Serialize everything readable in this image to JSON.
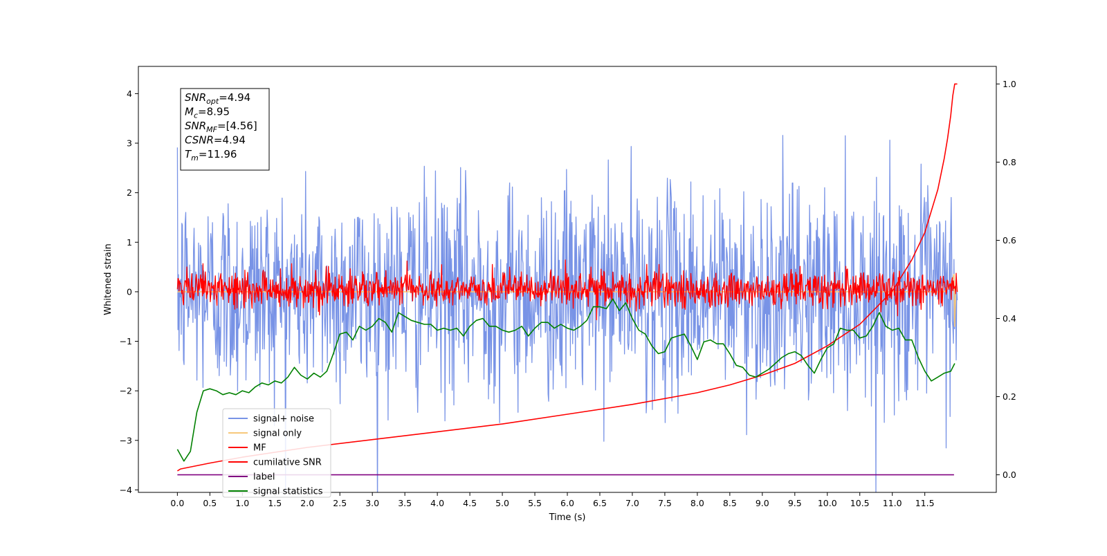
{
  "chart_data": {
    "type": "line",
    "xlabel": "Time (s)",
    "ylabel": "Whitened strain",
    "xlim": [
      -0.6,
      12.6
    ],
    "ylim": [
      -4.05,
      4.55
    ],
    "y2lim": [
      -0.045,
      1.045
    ],
    "x_ticks": [
      0.0,
      0.5,
      1.0,
      1.5,
      2.0,
      2.5,
      3.0,
      3.5,
      4.0,
      4.5,
      5.0,
      5.5,
      6.0,
      6.5,
      7.0,
      7.5,
      8.0,
      8.5,
      9.0,
      9.5,
      10.0,
      10.5,
      11.0,
      11.5
    ],
    "x_tick_labels": [
      "0.0",
      "0.5",
      "1.0",
      "1.5",
      "2.0",
      "2.5",
      "3.0",
      "3.5",
      "4.0",
      "4.5",
      "5.0",
      "5.5",
      "6.0",
      "6.5",
      "7.0",
      "7.5",
      "8.0",
      "8.5",
      "9.0",
      "9.5",
      "10.0",
      "10.5",
      "11.0",
      "11.5"
    ],
    "y_ticks": [
      -4,
      -3,
      -2,
      -1,
      0,
      1,
      2,
      3,
      4
    ],
    "y_tick_labels": [
      "−4",
      "−3",
      "−2",
      "−1",
      "0",
      "1",
      "2",
      "3",
      "4"
    ],
    "y2_ticks": [
      0.0,
      0.2,
      0.4,
      0.6,
      0.8,
      1.0
    ],
    "y2_tick_labels": [
      "0.0",
      "0.2",
      "0.4",
      "0.6",
      "0.8",
      "1.0"
    ],
    "legend_position": "lower-left",
    "info_box": {
      "lines": [
        {
          "sym": "SNR",
          "sub": "opt",
          "val": "=4.94"
        },
        {
          "sym": "M",
          "sub": "c",
          "val": "=8.95"
        },
        {
          "sym": "SNR",
          "sub": "MF",
          "val": "=[4.56]"
        },
        {
          "sym": "CSNR",
          "sub": "",
          "val": "=4.94"
        },
        {
          "sym": "T",
          "sub": "m",
          "val": "=11.96"
        }
      ]
    },
    "series": [
      {
        "name": "signal+ noise",
        "color": "#7893e6",
        "axis": "left",
        "style": "noise",
        "t_start": 0.0,
        "t_end": 12.0,
        "samples": 1400,
        "std": 1.05,
        "mean": 0.0
      },
      {
        "name": "signal only",
        "color": "#f7c87a",
        "axis": "left",
        "style": "line",
        "x": [
          0.0,
          11.8,
          11.9,
          11.95,
          11.96,
          11.98,
          12.0
        ],
        "y": [
          0.0,
          0.0,
          0.15,
          0.35,
          -0.7,
          0.25,
          0.0
        ]
      },
      {
        "name": "MF",
        "color": "#ff0000",
        "axis": "left",
        "style": "noise",
        "t_start": 0.0,
        "t_end": 12.0,
        "samples": 1400,
        "std": 0.18,
        "mean": 0.05
      },
      {
        "name": "cumilative SNR",
        "color": "#ff0000",
        "axis": "right",
        "style": "line",
        "x": [
          0.0,
          0.05,
          0.5,
          1.0,
          2.0,
          3.0,
          4.0,
          5.0,
          6.0,
          7.0,
          8.0,
          8.5,
          9.0,
          9.5,
          10.0,
          10.5,
          11.0,
          11.3,
          11.5,
          11.7,
          11.8,
          11.85,
          11.9,
          11.93,
          11.96,
          12.0
        ],
        "y": [
          0.01,
          0.015,
          0.03,
          0.045,
          0.07,
          0.09,
          0.11,
          0.13,
          0.155,
          0.18,
          0.21,
          0.23,
          0.255,
          0.285,
          0.33,
          0.385,
          0.47,
          0.55,
          0.62,
          0.73,
          0.81,
          0.86,
          0.92,
          0.97,
          1.0,
          1.0
        ]
      },
      {
        "name": "label",
        "color": "#800080",
        "axis": "right",
        "style": "line",
        "x": [
          0.0,
          11.95
        ],
        "y": [
          0.0,
          0.0
        ]
      },
      {
        "name": "signal statistics",
        "color": "#008000",
        "axis": "right",
        "style": "line",
        "x": [
          0.0,
          0.1,
          0.2,
          0.3,
          0.4,
          0.5,
          0.6,
          0.7,
          0.8,
          0.9,
          1.0,
          1.1,
          1.2,
          1.3,
          1.4,
          1.5,
          1.6,
          1.7,
          1.8,
          1.9,
          2.0,
          2.1,
          2.2,
          2.3,
          2.4,
          2.5,
          2.6,
          2.7,
          2.8,
          2.9,
          3.0,
          3.1,
          3.2,
          3.3,
          3.4,
          3.5,
          3.6,
          3.7,
          3.8,
          3.9,
          4.0,
          4.1,
          4.2,
          4.3,
          4.4,
          4.5,
          4.6,
          4.7,
          4.8,
          4.9,
          5.0,
          5.1,
          5.2,
          5.3,
          5.4,
          5.5,
          5.6,
          5.7,
          5.8,
          5.9,
          6.0,
          6.1,
          6.2,
          6.3,
          6.4,
          6.5,
          6.6,
          6.7,
          6.8,
          6.9,
          7.0,
          7.1,
          7.2,
          7.3,
          7.4,
          7.5,
          7.6,
          7.7,
          7.8,
          7.9,
          8.0,
          8.1,
          8.2,
          8.3,
          8.4,
          8.5,
          8.6,
          8.7,
          8.8,
          8.9,
          9.0,
          9.1,
          9.2,
          9.3,
          9.4,
          9.5,
          9.6,
          9.7,
          9.8,
          9.9,
          10.0,
          10.1,
          10.2,
          10.3,
          10.4,
          10.5,
          10.6,
          10.7,
          10.8,
          10.9,
          11.0,
          11.1,
          11.2,
          11.3,
          11.4,
          11.5,
          11.6,
          11.7,
          11.8,
          11.9,
          11.96
        ],
        "y": [
          0.065,
          0.035,
          0.06,
          0.16,
          0.215,
          0.22,
          0.215,
          0.205,
          0.21,
          0.205,
          0.215,
          0.21,
          0.225,
          0.235,
          0.23,
          0.24,
          0.235,
          0.25,
          0.275,
          0.255,
          0.245,
          0.26,
          0.25,
          0.265,
          0.31,
          0.36,
          0.365,
          0.345,
          0.38,
          0.37,
          0.38,
          0.4,
          0.39,
          0.365,
          0.415,
          0.405,
          0.395,
          0.39,
          0.385,
          0.385,
          0.37,
          0.375,
          0.37,
          0.375,
          0.355,
          0.38,
          0.395,
          0.4,
          0.38,
          0.38,
          0.37,
          0.365,
          0.37,
          0.38,
          0.355,
          0.375,
          0.39,
          0.39,
          0.375,
          0.385,
          0.375,
          0.37,
          0.38,
          0.395,
          0.43,
          0.43,
          0.425,
          0.45,
          0.42,
          0.44,
          0.4,
          0.37,
          0.36,
          0.33,
          0.31,
          0.315,
          0.35,
          0.355,
          0.36,
          0.33,
          0.295,
          0.34,
          0.345,
          0.335,
          0.335,
          0.31,
          0.28,
          0.275,
          0.255,
          0.25,
          0.26,
          0.27,
          0.285,
          0.3,
          0.31,
          0.315,
          0.305,
          0.28,
          0.26,
          0.295,
          0.325,
          0.335,
          0.375,
          0.37,
          0.37,
          0.35,
          0.355,
          0.38,
          0.415,
          0.38,
          0.37,
          0.375,
          0.345,
          0.345,
          0.3,
          0.265,
          0.24,
          0.25,
          0.26,
          0.265,
          0.285
        ]
      }
    ]
  }
}
